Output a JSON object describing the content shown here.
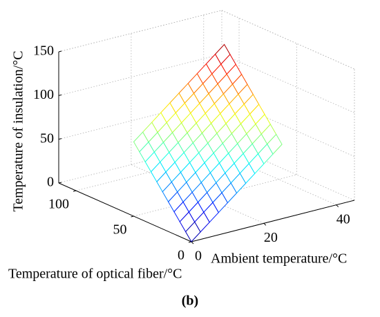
{
  "chart_data": {
    "type": "surface",
    "x_label": "Ambient temperature/°C",
    "y_label": "Temperature of optical fiber/°C",
    "z_label": "Temperature of insulation/°C",
    "caption": "(b)",
    "x": [
      0,
      2.5,
      5,
      7.5,
      10,
      12.5,
      15,
      17.5,
      20,
      22.5,
      25
    ],
    "y": [
      0,
      5,
      10,
      15,
      20,
      25,
      30,
      35,
      40,
      45,
      50
    ],
    "z": [
      [
        0,
        8.5,
        17,
        25.5,
        34,
        42.5,
        51,
        59.5,
        68,
        76.5,
        85
      ],
      [
        8.5,
        17,
        25.5,
        34,
        42.5,
        51,
        59.5,
        68,
        76.5,
        85,
        93.5
      ],
      [
        17,
        25.5,
        34,
        42.5,
        51,
        59.5,
        68,
        76.5,
        85,
        93.5,
        102
      ],
      [
        25.5,
        34,
        42.5,
        51,
        59.5,
        68,
        76.5,
        85,
        93.5,
        102,
        110.5
      ],
      [
        34,
        42.5,
        51,
        59.5,
        68,
        76.5,
        85,
        93.5,
        102,
        110.5,
        119
      ],
      [
        42.5,
        51,
        59.5,
        68,
        76.5,
        85,
        93.5,
        102,
        110.5,
        119,
        127.5
      ],
      [
        51,
        59.5,
        68,
        76.5,
        85,
        93.5,
        102,
        110.5,
        119,
        127.5,
        136
      ],
      [
        59.5,
        68,
        76.5,
        85,
        93.5,
        102,
        110.5,
        119,
        127.5,
        136,
        144.5
      ],
      [
        68,
        76.5,
        85,
        93.5,
        102,
        110.5,
        119,
        127.5,
        136,
        144.5,
        153
      ],
      [
        76.5,
        85,
        93.5,
        102,
        110.5,
        119,
        127.5,
        136,
        144.5,
        153,
        161.5
      ],
      [
        85,
        93.5,
        102,
        110.5,
        119,
        127.5,
        136,
        144.5,
        153,
        161.5,
        170
      ]
    ],
    "xlim": [
      0,
      45
    ],
    "xticks": [
      0,
      20,
      40
    ],
    "ylim": [
      0,
      115
    ],
    "yticks": [
      0,
      50,
      100
    ],
    "zlim": [
      0,
      150
    ],
    "zticks": [
      0,
      50,
      100,
      150
    ],
    "grid": true,
    "colormap": "jet"
  }
}
